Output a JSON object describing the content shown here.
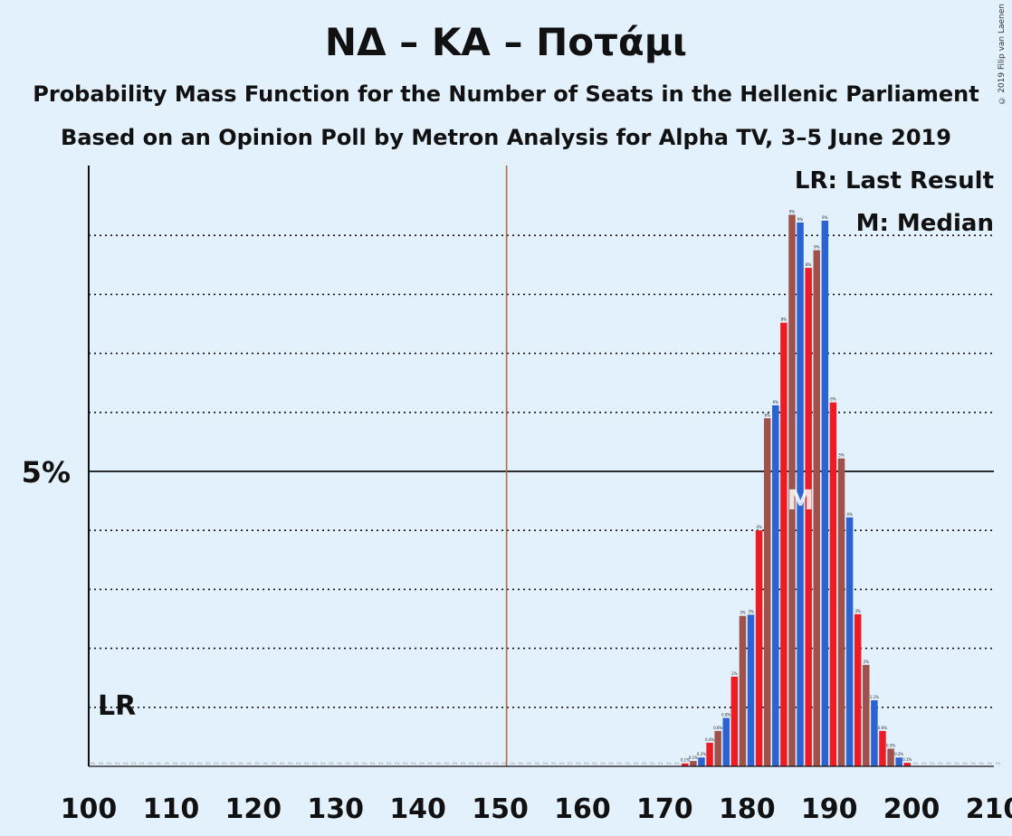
{
  "title": "ΝΔ – ΚΑ – Ποτάμι",
  "subtitle1": "Probability Mass Function for the Number of Seats in the Hellenic Parliament",
  "subtitle2": "Based on an Opinion Poll by Metron Analysis for Alpha TV, 3–5 June 2019",
  "copyright": "© 2019 Filip van Laenen",
  "legend": {
    "last_result": "LR: Last Result",
    "median": "M: Median"
  },
  "colors": {
    "background": "#e3f1fd",
    "red": "#ed1c24",
    "blue": "#2b63d3",
    "brown": "#a0524a",
    "majority_line": "#b4693e"
  },
  "chart_data": {
    "type": "bar",
    "xlabel": "",
    "ylabel": "",
    "xlim": [
      100,
      210
    ],
    "ylim": [
      0,
      10.2
    ],
    "x_ticks": [
      "100",
      "110",
      "120",
      "130",
      "140",
      "150",
      "160",
      "170",
      "180",
      "190",
      "200",
      "210"
    ],
    "y_tick_label": "5%",
    "y_tick_value": 5,
    "gridlines": [
      1,
      2,
      3,
      4,
      5,
      6,
      7,
      8,
      9
    ],
    "majority_line_x": 151,
    "last_result_label": "LR",
    "median_label": "M",
    "median_x": 186,
    "bars": [
      {
        "x": 172,
        "value": 0.05,
        "label": "0.1%",
        "color": "red"
      },
      {
        "x": 173,
        "value": 0.09,
        "label": "0.1%",
        "color": "brown"
      },
      {
        "x": 174,
        "value": 0.15,
        "label": "0.2%",
        "color": "blue"
      },
      {
        "x": 175,
        "value": 0.4,
        "label": "0.4%",
        "color": "red"
      },
      {
        "x": 176,
        "value": 0.6,
        "label": "0.6%",
        "color": "brown"
      },
      {
        "x": 177,
        "value": 0.82,
        "label": "0.8%",
        "color": "blue"
      },
      {
        "x": 178,
        "value": 1.52,
        "label": "2%",
        "color": "red"
      },
      {
        "x": 179,
        "value": 2.55,
        "label": "3%",
        "color": "brown"
      },
      {
        "x": 180,
        "value": 2.57,
        "label": "3%",
        "color": "blue"
      },
      {
        "x": 181,
        "value": 4.0,
        "label": "4%",
        "color": "red"
      },
      {
        "x": 182,
        "value": 5.9,
        "label": "6%",
        "color": "brown"
      },
      {
        "x": 183,
        "value": 6.12,
        "label": "6%",
        "color": "blue"
      },
      {
        "x": 184,
        "value": 7.52,
        "label": "8%",
        "color": "red"
      },
      {
        "x": 185,
        "value": 9.35,
        "label": "9%",
        "color": "brown"
      },
      {
        "x": 186,
        "value": 9.22,
        "label": "9%",
        "color": "blue"
      },
      {
        "x": 187,
        "value": 8.45,
        "label": "8%",
        "color": "red"
      },
      {
        "x": 188,
        "value": 8.75,
        "label": "9%",
        "color": "brown"
      },
      {
        "x": 189,
        "value": 9.25,
        "label": "9%",
        "color": "blue"
      },
      {
        "x": 190,
        "value": 6.17,
        "label": "6%",
        "color": "red"
      },
      {
        "x": 191,
        "value": 5.22,
        "label": "5%",
        "color": "brown"
      },
      {
        "x": 192,
        "value": 4.22,
        "label": "4%",
        "color": "blue"
      },
      {
        "x": 193,
        "value": 2.58,
        "label": "3%",
        "color": "red"
      },
      {
        "x": 194,
        "value": 1.72,
        "label": "2%",
        "color": "brown"
      },
      {
        "x": 195,
        "value": 1.12,
        "label": "1.1%",
        "color": "blue"
      },
      {
        "x": 196,
        "value": 0.6,
        "label": "0.6%",
        "color": "red"
      },
      {
        "x": 197,
        "value": 0.3,
        "label": "0.3%",
        "color": "brown"
      },
      {
        "x": 198,
        "value": 0.15,
        "label": "0.2%",
        "color": "blue"
      },
      {
        "x": 199,
        "value": 0.06,
        "label": "0.1%",
        "color": "red"
      }
    ]
  }
}
